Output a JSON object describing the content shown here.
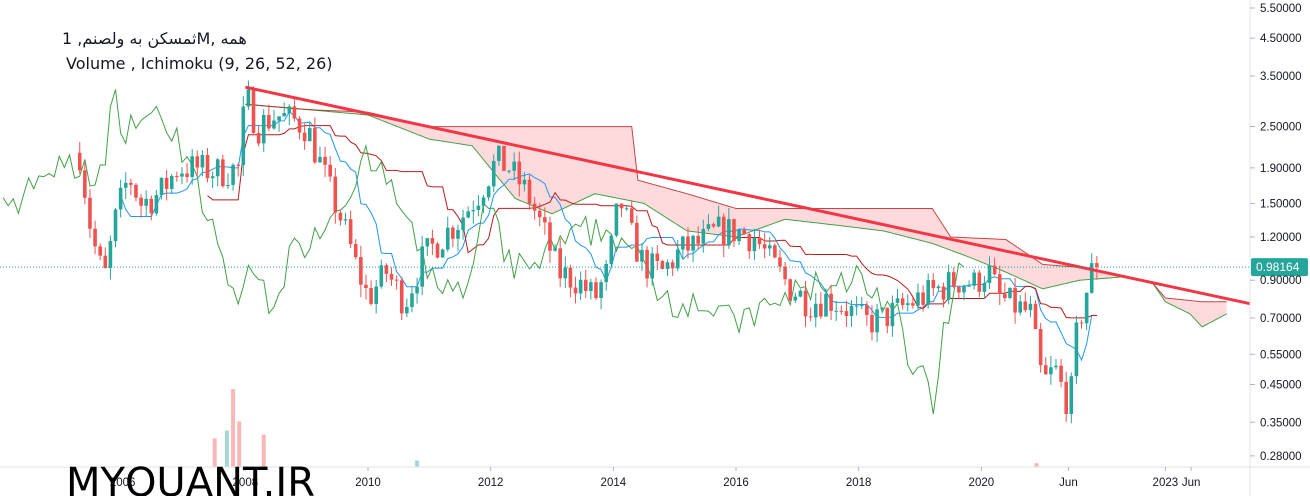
{
  "header": {
    "symbol_line": "ثمسکن به ولصنم, 1M, همه",
    "indicator_line": "Volume , Ichimoku (9, 26, 52, 26)"
  },
  "watermark": "MYQUANT.IR",
  "colors": {
    "up": "#26a69a",
    "down": "#ef5350",
    "tenkan": "#2196f3",
    "kijun": "#b71c1c",
    "chikou": "#43a047",
    "span_a": "#43a047",
    "span_b": "#b71c1c",
    "cloud_bear": "#ffcdd2",
    "trendline": "#f23645",
    "last_price": "#26a69a",
    "volume_down": "#f7b8b7",
    "volume_up": "#a5d8d3"
  },
  "chart_data": {
    "type": "candlestick",
    "y_scale": "log",
    "ylim": [
      0.26,
      5.8
    ],
    "last_price_label": "0.98164",
    "last_price": 0.98164,
    "y_ticks": [
      {
        "label": "5.50000",
        "value": 5.5
      },
      {
        "label": "4.50000",
        "value": 4.5
      },
      {
        "label": "3.50000",
        "value": 3.5
      },
      {
        "label": "2.50000",
        "value": 2.5
      },
      {
        "label": "1.90000",
        "value": 1.9
      },
      {
        "label": "1.50000",
        "value": 1.5
      },
      {
        "label": "1.20000",
        "value": 1.2
      },
      {
        "label": "0.90000",
        "value": 0.9
      },
      {
        "label": "0.70000",
        "value": 0.7
      },
      {
        "label": "0.55000",
        "value": 0.55
      },
      {
        "label": "0.45000",
        "value": 0.45
      },
      {
        "label": "0.35000",
        "value": 0.35
      },
      {
        "label": "0.28000",
        "value": 0.28
      }
    ],
    "x_ticks": [
      {
        "label": "2006",
        "t": 2006.0
      },
      {
        "label": "2008",
        "t": 2008.0
      },
      {
        "label": "2010",
        "t": 2010.0
      },
      {
        "label": "2012",
        "t": 2012.0
      },
      {
        "label": "2014",
        "t": 2014.0
      },
      {
        "label": "2016",
        "t": 2016.0
      },
      {
        "label": "2018",
        "t": 2018.0
      },
      {
        "label": "2020",
        "t": 2020.0
      },
      {
        "label": "Jun",
        "t": 2021.42
      },
      {
        "label": "2023",
        "t": 2023.0
      },
      {
        "label": "Jun",
        "t": 2023.42
      }
    ],
    "xlim": [
      2004.0,
      2024.38
    ],
    "ohlc_anchors": [
      [
        2005.3,
        2.1
      ],
      [
        2005.5,
        1.2
      ],
      [
        2005.7,
        0.9
      ],
      [
        2005.9,
        1.4
      ],
      [
        2006.1,
        1.8
      ],
      [
        2006.3,
        1.5
      ],
      [
        2006.6,
        1.6
      ],
      [
        2006.9,
        1.9
      ],
      [
        2007.2,
        1.9
      ],
      [
        2007.6,
        1.85
      ],
      [
        2007.9,
        1.9
      ],
      [
        2008.0,
        3.1
      ],
      [
        2008.2,
        2.5
      ],
      [
        2008.5,
        2.7
      ],
      [
        2008.8,
        2.6
      ],
      [
        2009.0,
        2.5
      ],
      [
        2009.2,
        2.0
      ],
      [
        2009.4,
        1.6
      ],
      [
        2009.6,
        1.3
      ],
      [
        2009.8,
        1.0
      ],
      [
        2010.0,
        0.8
      ],
      [
        2010.3,
        0.95
      ],
      [
        2010.6,
        0.78
      ],
      [
        2010.9,
        1.05
      ],
      [
        2011.2,
        1.2
      ],
      [
        2011.5,
        1.35
      ],
      [
        2011.8,
        1.6
      ],
      [
        2012.1,
        2.0
      ],
      [
        2012.3,
        1.9
      ],
      [
        2012.6,
        1.6
      ],
      [
        2012.9,
        1.2
      ],
      [
        2013.1,
        0.95
      ],
      [
        2013.4,
        0.9
      ],
      [
        2013.7,
        0.8
      ],
      [
        2013.9,
        0.95
      ],
      [
        2014.1,
        1.55
      ],
      [
        2014.3,
        1.2
      ],
      [
        2014.5,
        1.0
      ],
      [
        2014.8,
        0.95
      ],
      [
        2015.1,
        1.1
      ],
      [
        2015.4,
        1.15
      ],
      [
        2015.7,
        1.25
      ],
      [
        2016.0,
        1.25
      ],
      [
        2016.3,
        1.2
      ],
      [
        2016.6,
        1.0
      ],
      [
        2016.9,
        0.85
      ],
      [
        2017.2,
        0.78
      ],
      [
        2017.5,
        0.8
      ],
      [
        2017.8,
        0.75
      ],
      [
        2018.1,
        0.68
      ],
      [
        2018.4,
        0.7
      ],
      [
        2018.7,
        0.75
      ],
      [
        2019.0,
        0.8
      ],
      [
        2019.3,
        0.85
      ],
      [
        2019.6,
        0.9
      ],
      [
        2019.9,
        0.88
      ],
      [
        2020.1,
        0.97
      ],
      [
        2020.3,
        0.8
      ],
      [
        2020.6,
        0.75
      ],
      [
        2020.8,
        0.72
      ],
      [
        2021.0,
        0.45
      ],
      [
        2021.2,
        0.5
      ],
      [
        2021.35,
        0.42
      ],
      [
        2021.45,
        0.4
      ],
      [
        2021.55,
        0.62
      ],
      [
        2021.7,
        0.82
      ],
      [
        2021.8,
        0.95
      ],
      [
        2021.9,
        0.98164
      ]
    ],
    "trendline": {
      "from": {
        "t": 2008.0,
        "v": 3.25
      },
      "to": {
        "t": 2024.38,
        "v": 0.77
      }
    },
    "cloud_anchors_a": [
      [
        2008.0,
        2.9
      ],
      [
        2009.0,
        2.8
      ],
      [
        2010.0,
        2.7
      ],
      [
        2011.0,
        2.3
      ],
      [
        2011.7,
        2.2
      ],
      [
        2012.4,
        1.55
      ],
      [
        2013.0,
        1.4
      ],
      [
        2013.7,
        1.6
      ],
      [
        2014.5,
        1.5
      ],
      [
        2015.2,
        1.25
      ],
      [
        2016.0,
        1.2
      ],
      [
        2016.8,
        1.35
      ],
      [
        2017.6,
        1.3
      ],
      [
        2018.4,
        1.25
      ],
      [
        2019.2,
        1.15
      ],
      [
        2019.8,
        1.05
      ],
      [
        2020.4,
        0.95
      ],
      [
        2021.0,
        0.85
      ],
      [
        2021.6,
        0.9
      ],
      [
        2022.3,
        0.92
      ],
      [
        2022.8,
        0.88
      ],
      [
        2023.0,
        0.78
      ],
      [
        2023.4,
        0.72
      ],
      [
        2023.6,
        0.66
      ],
      [
        2024.0,
        0.72
      ]
    ],
    "cloud_anchors_b": [
      [
        2008.0,
        2.9
      ],
      [
        2009.0,
        2.8
      ],
      [
        2010.0,
        2.75
      ],
      [
        2011.0,
        2.5
      ],
      [
        2011.7,
        2.5
      ],
      [
        2012.4,
        2.5
      ],
      [
        2013.0,
        2.5
      ],
      [
        2013.7,
        2.5
      ],
      [
        2014.3,
        2.5
      ],
      [
        2014.4,
        1.75
      ],
      [
        2015.2,
        1.6
      ],
      [
        2016.0,
        1.45
      ],
      [
        2016.8,
        1.45
      ],
      [
        2017.6,
        1.45
      ],
      [
        2018.4,
        1.45
      ],
      [
        2019.2,
        1.45
      ],
      [
        2019.5,
        1.2
      ],
      [
        2020.4,
        1.18
      ],
      [
        2021.0,
        1.0
      ],
      [
        2021.6,
        0.98
      ],
      [
        2022.3,
        0.92
      ],
      [
        2022.8,
        0.88
      ],
      [
        2023.0,
        0.8
      ],
      [
        2023.6,
        0.78
      ],
      [
        2024.0,
        0.78
      ]
    ],
    "volume_bars": [
      {
        "t": 2007.5,
        "v": 0.22,
        "up": false
      },
      {
        "t": 2007.7,
        "v": 0.28,
        "up": true
      },
      {
        "t": 2007.8,
        "v": 0.6,
        "up": false
      },
      {
        "t": 2007.9,
        "v": 0.35,
        "up": false
      },
      {
        "t": 2008.3,
        "v": 0.25,
        "up": false
      },
      {
        "t": 2010.8,
        "v": 0.05,
        "up": true
      },
      {
        "t": 2020.9,
        "v": 0.03,
        "up": false
      }
    ]
  }
}
